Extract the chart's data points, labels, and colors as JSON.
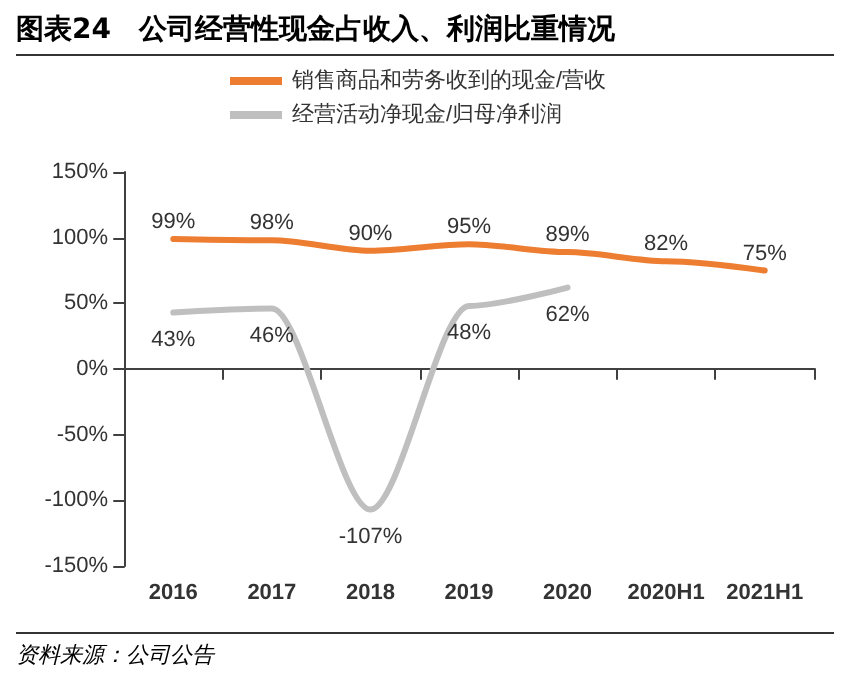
{
  "chart_data": {
    "type": "line",
    "title": "图表24　公司经营性现金占收入、利润比重情况",
    "annotations": [
      "资料来源：公司公告"
    ],
    "categories": [
      "2016",
      "2017",
      "2018",
      "2019",
      "2020",
      "2020H1",
      "2021H1"
    ],
    "series": [
      {
        "name": "销售商品和劳务收到的现金/营收",
        "color": "#ed7d31",
        "values": [
          99,
          98,
          90,
          95,
          89,
          82,
          75
        ],
        "value_labels": [
          "99%",
          "98%",
          "90%",
          "95%",
          "89%",
          "82%",
          "75%"
        ]
      },
      {
        "name": "经营活动净现金/归母净利润",
        "color": "#bfbfbf",
        "values": [
          43,
          46,
          -107,
          48,
          62,
          null,
          null
        ],
        "value_labels": [
          "43%",
          "46%",
          "-107%",
          "48%",
          "62%",
          null,
          null
        ]
      }
    ],
    "ylim": [
      -150,
      150
    ],
    "yticks": [
      {
        "value": -150,
        "label": "-150%"
      },
      {
        "value": -100,
        "label": "-100%"
      },
      {
        "value": -50,
        "label": "-50%"
      },
      {
        "value": 0,
        "label": "0%"
      },
      {
        "value": 50,
        "label": "50%"
      },
      {
        "value": 100,
        "label": "100%"
      },
      {
        "value": 150,
        "label": "150%"
      }
    ],
    "legend": "top",
    "marker": "none",
    "line_style": "solid"
  }
}
